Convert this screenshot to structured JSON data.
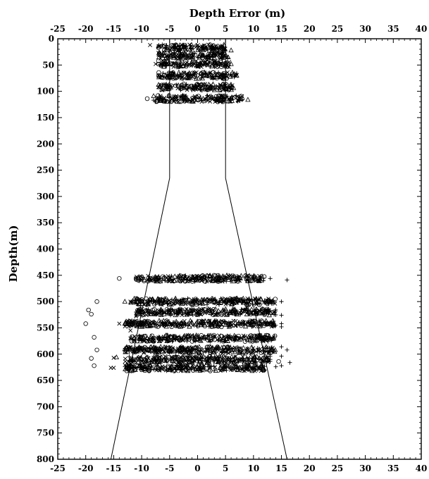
{
  "chart_data": {
    "type": "scatter",
    "title": "",
    "xlabel": "Depth Error (m)",
    "ylabel": "Depth(m)",
    "xlim": [
      -25,
      40
    ],
    "ylim": [
      800,
      0
    ],
    "x_ticks": [
      -25,
      -20,
      -15,
      -10,
      -5,
      0,
      5,
      10,
      15,
      20,
      25,
      30,
      35,
      40
    ],
    "x_tick_labels": [
      "-25",
      "-20",
      "-15",
      "-10",
      "-5",
      "0",
      "5",
      "10",
      "15",
      "20",
      "25",
      "30",
      "35",
      "40"
    ],
    "y_ticks": [
      0,
      50,
      100,
      150,
      200,
      250,
      300,
      350,
      400,
      450,
      500,
      550,
      600,
      650,
      700,
      750,
      800
    ],
    "y_tick_labels": [
      "0",
      "50",
      "100",
      "150",
      "200",
      "250",
      "300",
      "350",
      "400",
      "450",
      "500",
      "550",
      "600",
      "650",
      "700",
      "750",
      "800"
    ],
    "x_axis_top_and_bottom": true,
    "grid": false,
    "legend": "none",
    "tolerance_lines": [
      {
        "points": [
          [
            -5,
            0
          ],
          [
            -5,
            265
          ],
          [
            -15.5,
            800
          ]
        ]
      },
      {
        "points": [
          [
            5,
            0
          ],
          [
            5,
            265
          ],
          [
            16,
            800
          ]
        ]
      }
    ],
    "marker_series": [
      {
        "marker": "circle",
        "points": [
          [
            -7,
            17
          ],
          [
            -5.5,
            17
          ],
          [
            -3,
            17
          ],
          [
            0.5,
            17
          ],
          [
            2.5,
            17
          ],
          [
            -6,
            32
          ],
          [
            -2,
            32
          ],
          [
            3,
            32
          ],
          [
            -6,
            48
          ],
          [
            -1,
            48
          ],
          [
            4,
            48
          ],
          [
            -6,
            70
          ],
          [
            1,
            70
          ],
          [
            -5,
            92
          ],
          [
            2,
            92
          ],
          [
            -9,
            114
          ],
          [
            -4,
            114
          ],
          [
            3,
            114
          ],
          [
            -14,
            456
          ],
          [
            -11,
            456
          ],
          [
            -6,
            456
          ],
          [
            0,
            456
          ],
          [
            4,
            456
          ],
          [
            9,
            456
          ],
          [
            -18,
            500
          ],
          [
            -8,
            500
          ],
          [
            -3,
            500
          ],
          [
            3,
            500
          ],
          [
            8,
            500
          ],
          [
            11,
            500
          ],
          [
            -19.5,
            516
          ],
          [
            -19,
            524
          ],
          [
            -7,
            518
          ],
          [
            -1,
            518
          ],
          [
            5,
            518
          ],
          [
            10.5,
            518
          ],
          [
            12,
            518
          ],
          [
            -20,
            542
          ],
          [
            -9,
            542
          ],
          [
            -3,
            542
          ],
          [
            4,
            542
          ],
          [
            11,
            542
          ],
          [
            12,
            542
          ],
          [
            -18.5,
            568
          ],
          [
            -7,
            570
          ],
          [
            0,
            570
          ],
          [
            7,
            570
          ],
          [
            12.5,
            570
          ],
          [
            -18,
            592
          ],
          [
            -9,
            592
          ],
          [
            -2,
            592
          ],
          [
            5,
            592
          ],
          [
            12,
            592
          ],
          [
            -19,
            608
          ],
          [
            -10,
            610
          ],
          [
            -3,
            610
          ],
          [
            4,
            610
          ],
          [
            10,
            610
          ],
          [
            12.5,
            612
          ],
          [
            14.5,
            614
          ],
          [
            -18.5,
            622
          ],
          [
            -8,
            626
          ],
          [
            0,
            626
          ],
          [
            6,
            626
          ]
        ]
      },
      {
        "marker": "triangle",
        "points": [
          [
            -3.5,
            17
          ],
          [
            1.5,
            17
          ],
          [
            6,
            22
          ],
          [
            -4,
            32
          ],
          [
            2,
            32
          ],
          [
            6,
            48
          ],
          [
            -3,
            70
          ],
          [
            5,
            70
          ],
          [
            7,
            70
          ],
          [
            -2,
            92
          ],
          [
            6,
            92
          ],
          [
            1,
            114
          ],
          [
            6,
            114
          ],
          [
            9,
            116
          ],
          [
            -10,
            456
          ],
          [
            -5,
            456
          ],
          [
            1,
            456
          ],
          [
            5,
            456
          ],
          [
            -13,
            500
          ],
          [
            -6,
            500
          ],
          [
            2,
            500
          ],
          [
            9,
            500
          ],
          [
            -10,
            520
          ],
          [
            -2,
            520
          ],
          [
            7,
            520
          ],
          [
            -13,
            542
          ],
          [
            -5,
            542
          ],
          [
            3,
            542
          ],
          [
            9,
            542
          ],
          [
            -9,
            570
          ],
          [
            -2,
            570
          ],
          [
            4,
            570
          ],
          [
            -13,
            590
          ],
          [
            -5,
            592
          ],
          [
            3,
            592
          ],
          [
            9,
            592
          ],
          [
            -14.5,
            606
          ],
          [
            -12,
            610
          ],
          [
            -6,
            612
          ],
          [
            2,
            612
          ],
          [
            7,
            612
          ],
          [
            -10,
            626
          ],
          [
            -3,
            626
          ],
          [
            4,
            626
          ],
          [
            9,
            628
          ]
        ]
      },
      {
        "marker": "x",
        "points": [
          [
            -8.5,
            12
          ],
          [
            -7,
            27
          ],
          [
            -5,
            32
          ],
          [
            -7.5,
            48
          ],
          [
            -7,
            70
          ],
          [
            -7,
            92
          ],
          [
            -6,
            114
          ],
          [
            -11,
            456
          ],
          [
            -8,
            456
          ],
          [
            -12,
            500
          ],
          [
            -9,
            500
          ],
          [
            -10.5,
            518
          ],
          [
            -11,
            528
          ],
          [
            -14,
            542
          ],
          [
            -10,
            542
          ],
          [
            -12,
            555
          ],
          [
            -12,
            570
          ],
          [
            -13,
            592
          ],
          [
            -12,
            610
          ],
          [
            -15,
            607
          ],
          [
            -15.5,
            626
          ],
          [
            -15,
            626
          ],
          [
            -11,
            626
          ]
        ]
      },
      {
        "marker": "plus",
        "points": [
          [
            4,
            17
          ],
          [
            5,
            48
          ],
          [
            8,
            116
          ],
          [
            10,
            456
          ],
          [
            13,
            456
          ],
          [
            16,
            459
          ],
          [
            15,
            500
          ],
          [
            12,
            518
          ],
          [
            15,
            526
          ],
          [
            15,
            542
          ],
          [
            15,
            548
          ],
          [
            11,
            570
          ],
          [
            13,
            570
          ],
          [
            15,
            586
          ],
          [
            16,
            592
          ],
          [
            15,
            604
          ],
          [
            13,
            610
          ],
          [
            15,
            622
          ],
          [
            16.5,
            616
          ],
          [
            14,
            624
          ],
          [
            12,
            630
          ],
          [
            9,
            630
          ],
          [
            11,
            626
          ]
        ]
      }
    ],
    "dense_bands": [
      {
        "y": 17,
        "x_range": [
          -7,
          5
        ]
      },
      {
        "y": 32,
        "x_range": [
          -7,
          5.5
        ]
      },
      {
        "y": 48,
        "x_range": [
          -7,
          6
        ]
      },
      {
        "y": 70,
        "x_range": [
          -7,
          7
        ]
      },
      {
        "y": 92,
        "x_range": [
          -7,
          6.5
        ]
      },
      {
        "y": 114,
        "x_range": [
          -8,
          8
        ]
      },
      {
        "y": 456,
        "x_range": [
          -11,
          12
        ]
      },
      {
        "y": 500,
        "x_range": [
          -12,
          14
        ]
      },
      {
        "y": 520,
        "x_range": [
          -11,
          14
        ]
      },
      {
        "y": 542,
        "x_range": [
          -13,
          14
        ]
      },
      {
        "y": 570,
        "x_range": [
          -12,
          14
        ]
      },
      {
        "y": 592,
        "x_range": [
          -13,
          14
        ]
      },
      {
        "y": 610,
        "x_range": [
          -13,
          13
        ]
      },
      {
        "y": 626,
        "x_range": [
          -13,
          12
        ]
      }
    ]
  }
}
